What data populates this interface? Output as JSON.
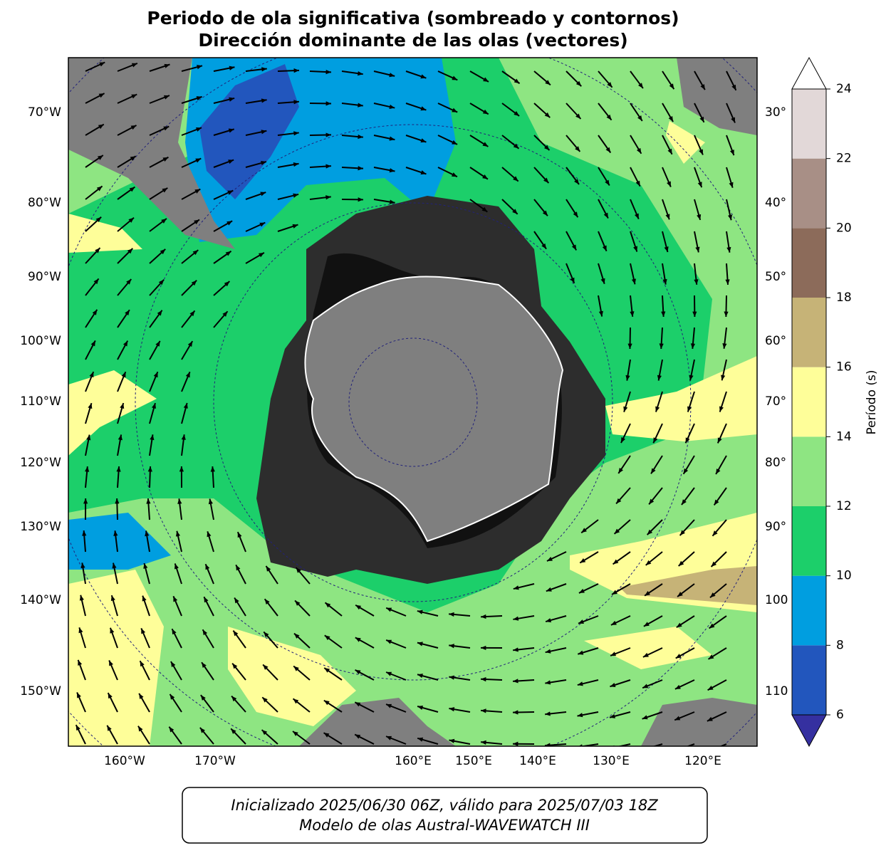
{
  "title": [
    "Periodo de ola significativa (sombreado y contornos)",
    "Dirección dominante de las olas (vectores)"
  ],
  "map": {
    "left_labels": [
      "70°W",
      "80°W",
      "90°W",
      "100°W",
      "110°W",
      "120°W",
      "130°W",
      "140°W",
      "150°W"
    ],
    "right_labels": [
      "30°",
      "40°",
      "50°",
      "60°",
      "70°",
      "80°",
      "90°",
      "100",
      "110"
    ],
    "bottom_labels": [
      "160°W",
      "170°W",
      "160°E",
      "150°E",
      "140°E",
      "130°E",
      "120°E"
    ]
  },
  "colorbar": {
    "label": "Período (s)",
    "ticks": [
      6,
      8,
      10,
      12,
      14,
      16,
      18,
      20,
      22,
      24
    ],
    "colors": [
      "#2256bd",
      "#009ee0",
      "#1ccf6a",
      "#8ee582",
      "#fefe99",
      "#c6b377",
      "#8c6b5a",
      "#a88f86",
      "#e2d8d8"
    ],
    "under_color": "#3530a0",
    "over_color": "#ffffff"
  },
  "footer": [
    "Inicializado 2025/06/30 06Z, válido para 2025/07/03 18Z",
    "Modelo de olas Austral-WAVEWATCH III"
  ]
}
